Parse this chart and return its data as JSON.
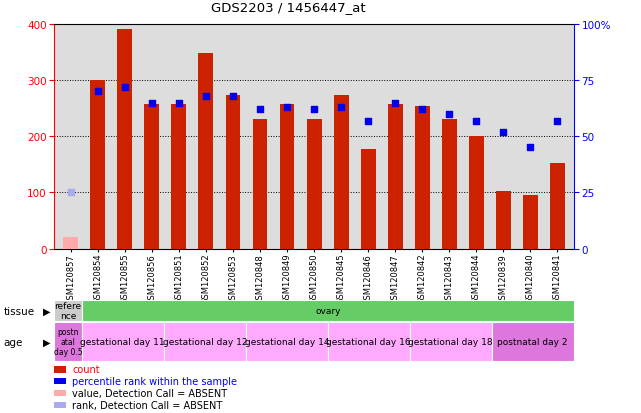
{
  "title": "GDS2203 / 1456447_at",
  "samples": [
    "GSM120857",
    "GSM120854",
    "GSM120855",
    "GSM120856",
    "GSM120851",
    "GSM120852",
    "GSM120853",
    "GSM120848",
    "GSM120849",
    "GSM120850",
    "GSM120845",
    "GSM120846",
    "GSM120847",
    "GSM120842",
    "GSM120843",
    "GSM120844",
    "GSM120839",
    "GSM120840",
    "GSM120841"
  ],
  "count_values": [
    20,
    300,
    390,
    258,
    258,
    348,
    274,
    230,
    257,
    230,
    274,
    178,
    257,
    253,
    230,
    200,
    102,
    95,
    152
  ],
  "rank_values": [
    25,
    70,
    72,
    65,
    65,
    68,
    68,
    62,
    63,
    62,
    63,
    57,
    65,
    62,
    60,
    57,
    52,
    45,
    57
  ],
  "absent_flags": [
    true,
    false,
    false,
    false,
    false,
    false,
    false,
    false,
    false,
    false,
    false,
    false,
    false,
    false,
    false,
    false,
    false,
    false,
    false
  ],
  "bar_color_present": "#cc2200",
  "bar_color_absent": "#ffaaaa",
  "rank_color_present": "#0000ee",
  "rank_color_absent": "#aaaaee",
  "ylim_left": [
    0,
    400
  ],
  "ylim_right": [
    0,
    100
  ],
  "yticks_left": [
    0,
    100,
    200,
    300,
    400
  ],
  "yticks_right": [
    0,
    25,
    50,
    75,
    100
  ],
  "tissue_groups": [
    {
      "label": "refere\nnce",
      "start": 0,
      "end": 1,
      "color": "#cccccc"
    },
    {
      "label": "ovary",
      "start": 1,
      "end": 19,
      "color": "#66cc66"
    }
  ],
  "age_groups": [
    {
      "label": "postn\natal\nday 0.5",
      "start": 0,
      "end": 1,
      "color": "#dd77dd"
    },
    {
      "label": "gestational day 11",
      "start": 1,
      "end": 4,
      "color": "#ffaaff"
    },
    {
      "label": "gestational day 12",
      "start": 4,
      "end": 7,
      "color": "#ffaaff"
    },
    {
      "label": "gestational day 14",
      "start": 7,
      "end": 10,
      "color": "#ffaaff"
    },
    {
      "label": "gestational day 16",
      "start": 10,
      "end": 13,
      "color": "#ffaaff"
    },
    {
      "label": "gestational day 18",
      "start": 13,
      "end": 16,
      "color": "#ffaaff"
    },
    {
      "label": "postnatal day 2",
      "start": 16,
      "end": 19,
      "color": "#dd77dd"
    }
  ],
  "bg_color": "#dddddd"
}
